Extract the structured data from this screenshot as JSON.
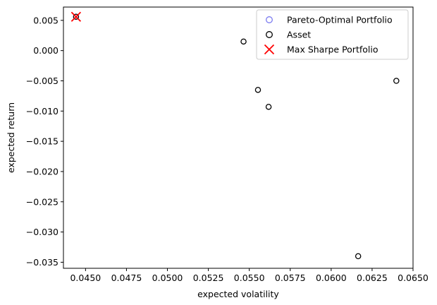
{
  "chart_data": {
    "type": "scatter",
    "title": "",
    "xlabel": "expected volatility",
    "ylabel": "expected return",
    "xlim": [
      0.04365,
      0.065
    ],
    "ylim": [
      -0.036,
      0.0072
    ],
    "xticks": [
      0.045,
      0.0475,
      0.05,
      0.0525,
      0.055,
      0.0575,
      0.06,
      0.0625,
      0.065
    ],
    "xtick_labels": [
      "0.0450",
      "0.0475",
      "0.0500",
      "0.0525",
      "0.0550",
      "0.0575",
      "0.0600",
      "0.0625",
      "0.0650"
    ],
    "yticks": [
      0.005,
      0.0,
      -0.005,
      -0.01,
      -0.015,
      -0.02,
      -0.025,
      -0.03,
      -0.035
    ],
    "ytick_labels": [
      "0.005",
      "0.000",
      "−0.005",
      "−0.010",
      "−0.015",
      "−0.020",
      "−0.025",
      "−0.030",
      "−0.035"
    ],
    "grid": false,
    "legend_position": "top-right",
    "series": [
      {
        "name": "Pareto-Optimal Portfolio",
        "marker": "circle-open",
        "color": "#7b7bf0",
        "points": [
          [
            0.04442,
            0.0056
          ]
        ]
      },
      {
        "name": "Asset",
        "marker": "circle-open",
        "color": "#000000",
        "points": [
          [
            0.04442,
            0.0056
          ],
          [
            0.05465,
            0.0015
          ],
          [
            0.05553,
            -0.0065
          ],
          [
            0.05618,
            -0.0093
          ],
          [
            0.06165,
            -0.034
          ],
          [
            0.06398,
            -0.005
          ]
        ]
      },
      {
        "name": "Max Sharpe Portfolio",
        "marker": "x",
        "color": "#ff0000",
        "points": [
          [
            0.04442,
            0.0056
          ]
        ]
      }
    ]
  }
}
